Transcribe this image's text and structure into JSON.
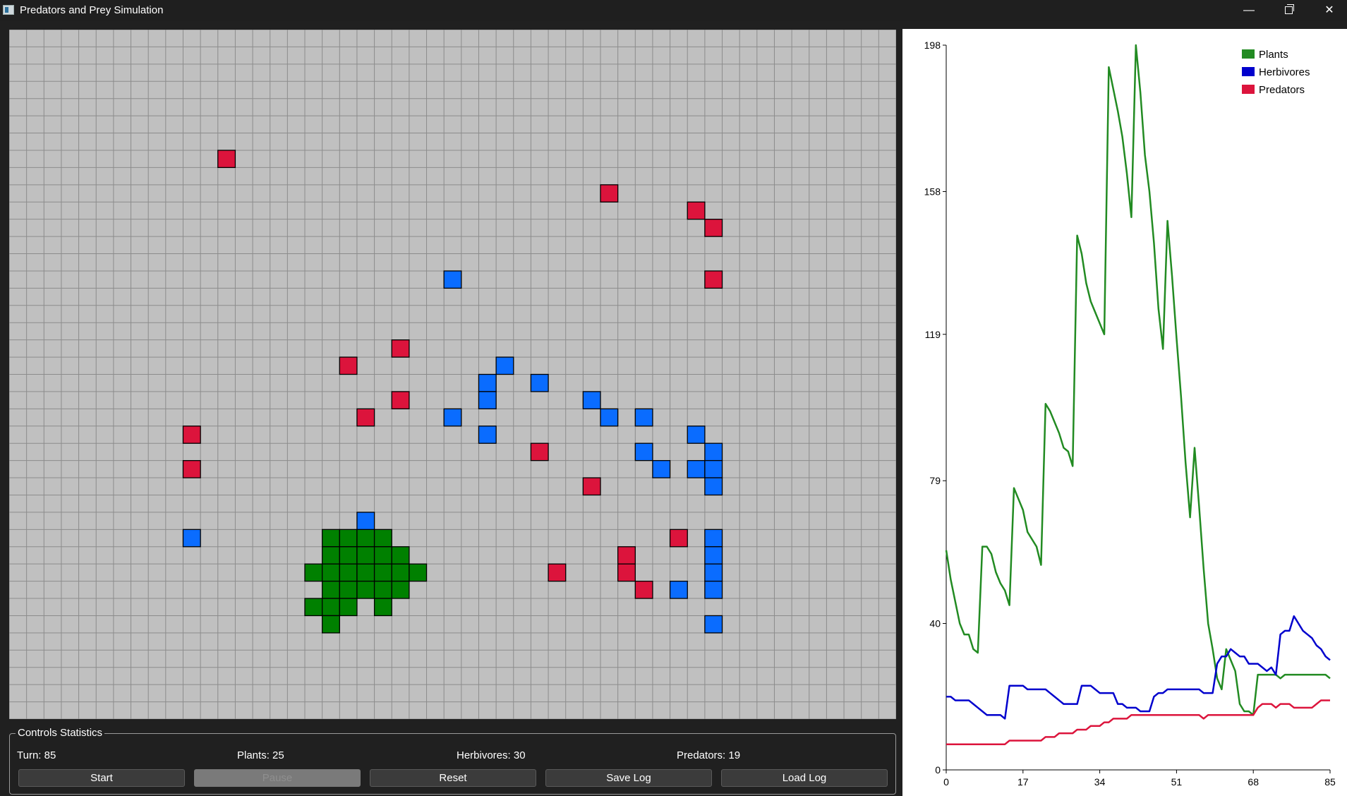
{
  "window": {
    "title": "Predators and Prey Simulation",
    "minimize": "—",
    "close": "✕"
  },
  "colors": {
    "plant": "#008000",
    "herbivore": "#0a6cff",
    "predator": "#dc143c",
    "empty": "#c0c0c0",
    "grid_line": "#8c8c8c",
    "plants_line": "#228b22",
    "herbivores_line": "#0000cd",
    "predators_line": "#dc143c"
  },
  "grid": {
    "cols": 51,
    "rows": 40,
    "predators": [
      [
        12,
        7
      ],
      [
        34,
        9
      ],
      [
        39,
        10
      ],
      [
        40,
        11
      ],
      [
        40,
        14
      ],
      [
        22,
        18
      ],
      [
        19,
        19
      ],
      [
        22,
        21
      ],
      [
        20,
        22
      ],
      [
        10,
        23
      ],
      [
        10,
        25
      ],
      [
        30,
        24
      ],
      [
        33,
        26
      ],
      [
        38,
        29
      ],
      [
        35,
        30
      ],
      [
        31,
        31
      ],
      [
        35,
        31
      ],
      [
        36,
        32
      ]
    ],
    "herbivores": [
      [
        25,
        14
      ],
      [
        28,
        19
      ],
      [
        27,
        20
      ],
      [
        30,
        20
      ],
      [
        27,
        21
      ],
      [
        33,
        21
      ],
      [
        25,
        22
      ],
      [
        34,
        22
      ],
      [
        36,
        22
      ],
      [
        27,
        23
      ],
      [
        39,
        23
      ],
      [
        36,
        24
      ],
      [
        40,
        24
      ],
      [
        37,
        25
      ],
      [
        39,
        25
      ],
      [
        40,
        25
      ],
      [
        40,
        26
      ],
      [
        20,
        28
      ],
      [
        10,
        29
      ],
      [
        40,
        29
      ],
      [
        40,
        30
      ],
      [
        40,
        31
      ],
      [
        38,
        32
      ],
      [
        40,
        32
      ],
      [
        40,
        34
      ]
    ],
    "plants": [
      [
        18,
        29
      ],
      [
        19,
        29
      ],
      [
        20,
        29
      ],
      [
        21,
        29
      ],
      [
        18,
        30
      ],
      [
        19,
        30
      ],
      [
        20,
        30
      ],
      [
        21,
        30
      ],
      [
        22,
        30
      ],
      [
        17,
        31
      ],
      [
        18,
        31
      ],
      [
        19,
        31
      ],
      [
        20,
        31
      ],
      [
        21,
        31
      ],
      [
        22,
        31
      ],
      [
        23,
        31
      ],
      [
        18,
        32
      ],
      [
        19,
        32
      ],
      [
        20,
        32
      ],
      [
        21,
        32
      ],
      [
        22,
        32
      ],
      [
        17,
        33
      ],
      [
        18,
        33
      ],
      [
        19,
        33
      ],
      [
        21,
        33
      ],
      [
        18,
        34
      ]
    ]
  },
  "controls": {
    "group_label": "Controls  Statistics",
    "turn": "Turn: 85",
    "plants": "Plants: 25",
    "herbivores": "Herbivores: 30",
    "predators": "Predators: 19",
    "buttons": {
      "start": "Start",
      "pause": "Pause",
      "reset": "Reset",
      "save_log": "Save Log",
      "load_log": "Load Log"
    }
  },
  "chart_data": {
    "type": "line",
    "title": "",
    "xlabel": "",
    "ylabel": "",
    "xlim": [
      0,
      85
    ],
    "ylim": [
      0,
      198
    ],
    "x_ticks": [
      0,
      17,
      34,
      51,
      68,
      85
    ],
    "y_ticks": [
      0,
      40,
      79,
      119,
      158,
      198
    ],
    "legend_position": "top-right",
    "grid": false,
    "series": [
      {
        "name": "Plants",
        "color": "#228b22",
        "points": [
          [
            0,
            60
          ],
          [
            1,
            52
          ],
          [
            2,
            46
          ],
          [
            3,
            40
          ],
          [
            4,
            37
          ],
          [
            5,
            37
          ],
          [
            6,
            33
          ],
          [
            7,
            32
          ],
          [
            8,
            61
          ],
          [
            9,
            61
          ],
          [
            10,
            59
          ],
          [
            11,
            54
          ],
          [
            12,
            51
          ],
          [
            13,
            49
          ],
          [
            14,
            45
          ],
          [
            15,
            77
          ],
          [
            16,
            74
          ],
          [
            17,
            71
          ],
          [
            18,
            65
          ],
          [
            19,
            63
          ],
          [
            20,
            61
          ],
          [
            21,
            56
          ],
          [
            22,
            100
          ],
          [
            23,
            98
          ],
          [
            24,
            95
          ],
          [
            25,
            92
          ],
          [
            26,
            88
          ],
          [
            27,
            87
          ],
          [
            28,
            83
          ],
          [
            29,
            146
          ],
          [
            30,
            141
          ],
          [
            31,
            133
          ],
          [
            32,
            128
          ],
          [
            33,
            125
          ],
          [
            34,
            122
          ],
          [
            35,
            119
          ],
          [
            36,
            192
          ],
          [
            37,
            186
          ],
          [
            38,
            180
          ],
          [
            39,
            173
          ],
          [
            40,
            163
          ],
          [
            41,
            151
          ],
          [
            42,
            198
          ],
          [
            43,
            185
          ],
          [
            44,
            168
          ],
          [
            45,
            158
          ],
          [
            46,
            144
          ],
          [
            47,
            126
          ],
          [
            48,
            115
          ],
          [
            49,
            150
          ],
          [
            50,
            135
          ],
          [
            51,
            118
          ],
          [
            52,
            102
          ],
          [
            53,
            84
          ],
          [
            54,
            69
          ],
          [
            55,
            88
          ],
          [
            56,
            72
          ],
          [
            57,
            55
          ],
          [
            58,
            40
          ],
          [
            59,
            33
          ],
          [
            60,
            25
          ],
          [
            61,
            22
          ],
          [
            62,
            33
          ],
          [
            63,
            30
          ],
          [
            64,
            27
          ],
          [
            65,
            18
          ],
          [
            66,
            16
          ],
          [
            67,
            16
          ],
          [
            68,
            15
          ],
          [
            69,
            26
          ],
          [
            70,
            26
          ],
          [
            71,
            26
          ],
          [
            72,
            26
          ],
          [
            73,
            26
          ],
          [
            74,
            25
          ],
          [
            75,
            26
          ],
          [
            76,
            26
          ],
          [
            77,
            26
          ],
          [
            78,
            26
          ],
          [
            79,
            26
          ],
          [
            80,
            26
          ],
          [
            81,
            26
          ],
          [
            82,
            26
          ],
          [
            83,
            26
          ],
          [
            84,
            26
          ],
          [
            85,
            25
          ]
        ]
      },
      {
        "name": "Herbivores",
        "color": "#0000cd",
        "points": [
          [
            0,
            20
          ],
          [
            1,
            20
          ],
          [
            2,
            19
          ],
          [
            3,
            19
          ],
          [
            4,
            19
          ],
          [
            5,
            19
          ],
          [
            6,
            18
          ],
          [
            7,
            17
          ],
          [
            8,
            16
          ],
          [
            9,
            15
          ],
          [
            10,
            15
          ],
          [
            11,
            15
          ],
          [
            12,
            15
          ],
          [
            13,
            14
          ],
          [
            14,
            23
          ],
          [
            15,
            23
          ],
          [
            16,
            23
          ],
          [
            17,
            23
          ],
          [
            18,
            22
          ],
          [
            19,
            22
          ],
          [
            20,
            22
          ],
          [
            21,
            22
          ],
          [
            22,
            22
          ],
          [
            23,
            21
          ],
          [
            24,
            20
          ],
          [
            25,
            19
          ],
          [
            26,
            18
          ],
          [
            27,
            18
          ],
          [
            28,
            18
          ],
          [
            29,
            18
          ],
          [
            30,
            23
          ],
          [
            31,
            23
          ],
          [
            32,
            23
          ],
          [
            33,
            22
          ],
          [
            34,
            21
          ],
          [
            35,
            21
          ],
          [
            36,
            21
          ],
          [
            37,
            21
          ],
          [
            38,
            18
          ],
          [
            39,
            18
          ],
          [
            40,
            17
          ],
          [
            41,
            17
          ],
          [
            42,
            17
          ],
          [
            43,
            16
          ],
          [
            44,
            16
          ],
          [
            45,
            16
          ],
          [
            46,
            20
          ],
          [
            47,
            21
          ],
          [
            48,
            21
          ],
          [
            49,
            22
          ],
          [
            50,
            22
          ],
          [
            51,
            22
          ],
          [
            52,
            22
          ],
          [
            53,
            22
          ],
          [
            54,
            22
          ],
          [
            55,
            22
          ],
          [
            56,
            22
          ],
          [
            57,
            21
          ],
          [
            58,
            21
          ],
          [
            59,
            21
          ],
          [
            60,
            29
          ],
          [
            61,
            31
          ],
          [
            62,
            31
          ],
          [
            63,
            33
          ],
          [
            64,
            32
          ],
          [
            65,
            31
          ],
          [
            66,
            31
          ],
          [
            67,
            29
          ],
          [
            68,
            29
          ],
          [
            69,
            29
          ],
          [
            70,
            28
          ],
          [
            71,
            27
          ],
          [
            72,
            28
          ],
          [
            73,
            26
          ],
          [
            74,
            37
          ],
          [
            75,
            38
          ],
          [
            76,
            38
          ],
          [
            77,
            42
          ],
          [
            78,
            40
          ],
          [
            79,
            38
          ],
          [
            80,
            37
          ],
          [
            81,
            36
          ],
          [
            82,
            34
          ],
          [
            83,
            33
          ],
          [
            84,
            31
          ],
          [
            85,
            30
          ]
        ]
      },
      {
        "name": "Predators",
        "color": "#dc143c",
        "points": [
          [
            0,
            7
          ],
          [
            1,
            7
          ],
          [
            2,
            7
          ],
          [
            3,
            7
          ],
          [
            4,
            7
          ],
          [
            5,
            7
          ],
          [
            6,
            7
          ],
          [
            7,
            7
          ],
          [
            8,
            7
          ],
          [
            9,
            7
          ],
          [
            10,
            7
          ],
          [
            11,
            7
          ],
          [
            12,
            7
          ],
          [
            13,
            7
          ],
          [
            14,
            8
          ],
          [
            15,
            8
          ],
          [
            16,
            8
          ],
          [
            17,
            8
          ],
          [
            18,
            8
          ],
          [
            19,
            8
          ],
          [
            20,
            8
          ],
          [
            21,
            8
          ],
          [
            22,
            9
          ],
          [
            23,
            9
          ],
          [
            24,
            9
          ],
          [
            25,
            10
          ],
          [
            26,
            10
          ],
          [
            27,
            10
          ],
          [
            28,
            10
          ],
          [
            29,
            11
          ],
          [
            30,
            11
          ],
          [
            31,
            11
          ],
          [
            32,
            12
          ],
          [
            33,
            12
          ],
          [
            34,
            12
          ],
          [
            35,
            13
          ],
          [
            36,
            13
          ],
          [
            37,
            14
          ],
          [
            38,
            14
          ],
          [
            39,
            14
          ],
          [
            40,
            14
          ],
          [
            41,
            15
          ],
          [
            42,
            15
          ],
          [
            43,
            15
          ],
          [
            44,
            15
          ],
          [
            45,
            15
          ],
          [
            46,
            15
          ],
          [
            47,
            15
          ],
          [
            48,
            15
          ],
          [
            49,
            15
          ],
          [
            50,
            15
          ],
          [
            51,
            15
          ],
          [
            52,
            15
          ],
          [
            53,
            15
          ],
          [
            54,
            15
          ],
          [
            55,
            15
          ],
          [
            56,
            15
          ],
          [
            57,
            14
          ],
          [
            58,
            15
          ],
          [
            59,
            15
          ],
          [
            60,
            15
          ],
          [
            61,
            15
          ],
          [
            62,
            15
          ],
          [
            63,
            15
          ],
          [
            64,
            15
          ],
          [
            65,
            15
          ],
          [
            66,
            15
          ],
          [
            67,
            15
          ],
          [
            68,
            15
          ],
          [
            69,
            17
          ],
          [
            70,
            18
          ],
          [
            71,
            18
          ],
          [
            72,
            18
          ],
          [
            73,
            17
          ],
          [
            74,
            18
          ],
          [
            75,
            18
          ],
          [
            76,
            18
          ],
          [
            77,
            17
          ],
          [
            78,
            17
          ],
          [
            79,
            17
          ],
          [
            80,
            17
          ],
          [
            81,
            17
          ],
          [
            82,
            18
          ],
          [
            83,
            19
          ],
          [
            84,
            19
          ],
          [
            85,
            19
          ]
        ]
      }
    ]
  }
}
